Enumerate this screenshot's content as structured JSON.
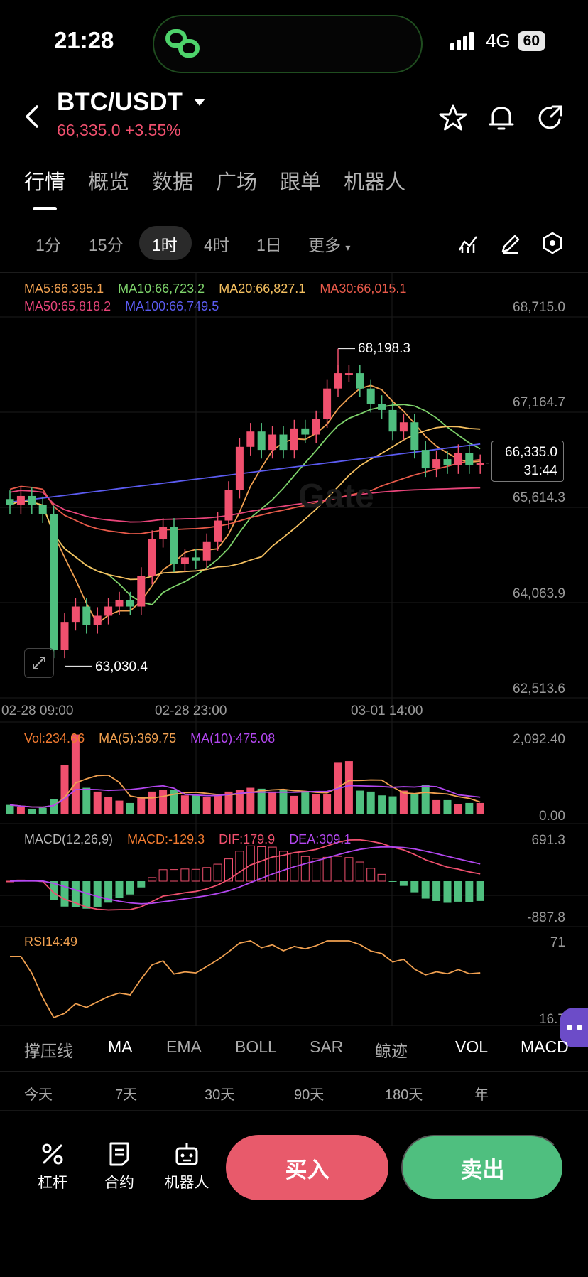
{
  "status": {
    "time": "21:28",
    "network": "4G",
    "battery": "60"
  },
  "header": {
    "pair": "BTC/USDT",
    "last_price": "66,335.0",
    "change": "+3.55%"
  },
  "tabs": [
    "行情",
    "概览",
    "数据",
    "广场",
    "跟单",
    "机器人"
  ],
  "timeframes": [
    "1分",
    "15分",
    "1时",
    "4时",
    "1日",
    "更多"
  ],
  "ma_legend": {
    "ma5": "MA5:66,395.1",
    "ma10": "MA10:66,723.2",
    "ma20": "MA20:66,827.1",
    "ma30": "MA30:66,015.1",
    "ma50": "MA50:65,818.2",
    "ma100": "MA100:66,749.5"
  },
  "colors": {
    "up": "#f0506e",
    "down": "#4fbf7f",
    "ma5": "#f0a050",
    "ma10": "#7ed36b",
    "ma20": "#f5c060",
    "ma30": "#e85a4a",
    "ma50": "#e8457a",
    "ma100": "#5b5bf0",
    "macd": "#f07a30",
    "dif": "#f0506e",
    "dea": "#b347f0",
    "rsi": "#f0a050"
  },
  "price_axis": [
    "68,715.0",
    "67,164.7",
    "65,614.3",
    "64,063.9",
    "62,513.6"
  ],
  "annotations": {
    "high": "68,198.3",
    "low": "63,030.4"
  },
  "current": {
    "price": "66,335.0",
    "countdown": "31:44"
  },
  "time_axis": [
    "02-28 09:00",
    "02-28 23:00",
    "03-01 14:00"
  ],
  "volume": {
    "vol": "Vol:234.66",
    "ma5": "MA(5):369.75",
    "ma10": "MA(10):475.08",
    "max": "2,092.40",
    "min": "0.00"
  },
  "macd": {
    "params": "MACD(12,26,9)",
    "macd": "MACD:-129.3",
    "dif": "DIF:179.9",
    "dea": "DEA:309.1",
    "max": "691.3",
    "min": "-887.8"
  },
  "rsi": {
    "label": "RSI14:49",
    "max": "71",
    "min": "16.7"
  },
  "indicator_tabs": [
    "撑压线",
    "MA",
    "EMA",
    "BOLL",
    "SAR",
    "鲸迹",
    "VOL",
    "MACD"
  ],
  "periods": [
    "今天",
    "7天",
    "30天",
    "90天",
    "180天",
    "年"
  ],
  "nav": [
    {
      "label": "杠杆",
      "icon": "percent-icon"
    },
    {
      "label": "合约",
      "icon": "contract-icon"
    },
    {
      "label": "机器人",
      "icon": "robot-icon"
    }
  ],
  "actions": {
    "buy": "买入",
    "sell": "卖出"
  },
  "chart_data": {
    "type": "candlestick",
    "opens": [
      65750,
      65650,
      65800,
      65650,
      65500,
      63300,
      63750,
      64000,
      63700,
      63850,
      64000,
      64100,
      64000,
      64500,
      65100,
      65300,
      64700,
      64800,
      64750,
      65050,
      65400,
      65900,
      66600,
      66850,
      66550,
      66800,
      66550,
      66900,
      66800,
      67050,
      67550,
      67800,
      67800,
      67550,
      67300,
      67200,
      66850,
      67000,
      66550,
      66250,
      66400,
      66300,
      66500,
      66300
    ],
    "closes": [
      65650,
      65800,
      65650,
      65500,
      63300,
      63750,
      64000,
      63700,
      63850,
      64000,
      64100,
      64000,
      64500,
      65100,
      65300,
      64700,
      64800,
      64750,
      65050,
      65400,
      65900,
      66600,
      66850,
      66550,
      66800,
      66550,
      66900,
      66800,
      67050,
      67550,
      67800,
      67800,
      67550,
      67300,
      67200,
      66850,
      67000,
      66550,
      66250,
      66400,
      66300,
      66500,
      66300,
      66335
    ],
    "volumes": [
      200,
      150,
      120,
      140,
      320,
      1040,
      1680,
      560,
      480,
      360,
      290,
      240,
      360,
      480,
      520,
      520,
      400,
      410,
      360,
      390,
      480,
      520,
      560,
      540,
      480,
      530,
      390,
      490,
      430,
      420,
      1100,
      1120,
      500,
      480,
      400,
      380,
      500,
      420,
      620,
      300,
      300,
      220,
      240,
      240
    ],
    "ylim": [
      62513.6,
      68715.0
    ]
  }
}
